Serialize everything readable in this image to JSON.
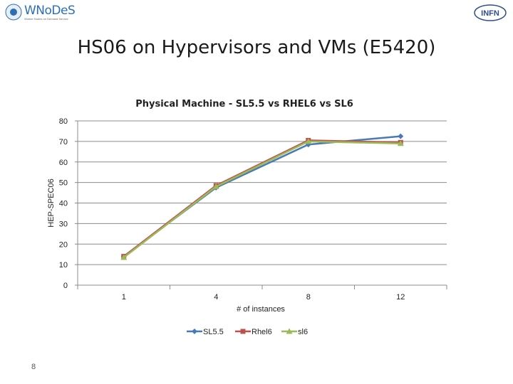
{
  "header": {
    "logo_text": "WNoDeS",
    "logo_tagline": "Worker Nodes on Demand Service",
    "institute_logo_text": "INFN"
  },
  "slide": {
    "title": "HS06 on Hypervisors and VMs (E5420)",
    "page_number": "8"
  },
  "colors": {
    "SL5.5": "#4a7ab5",
    "Rhel6": "#c0504d",
    "sl6": "#9bbb59"
  },
  "chart_data": {
    "type": "line",
    "title": "Physical Machine - SL5.5 vs RHEL6 vs SL6",
    "xlabel": "# of instances",
    "ylabel": "HEP-SPEC06",
    "categories": [
      "1",
      "4",
      "8",
      "12"
    ],
    "ylim": [
      0,
      80
    ],
    "yticks": [
      0,
      10,
      20,
      30,
      40,
      50,
      60,
      70,
      80
    ],
    "grid": "horizontal",
    "legend_position": "bottom",
    "series": [
      {
        "name": "SL5.5",
        "values": [
          14,
          47.5,
          68.5,
          72.5
        ],
        "marker": "diamond"
      },
      {
        "name": "Rhel6",
        "values": [
          14,
          48.5,
          70.5,
          69.5
        ],
        "marker": "square"
      },
      {
        "name": "sl6",
        "values": [
          13.5,
          48,
          70,
          69
        ],
        "marker": "triangle"
      }
    ]
  }
}
